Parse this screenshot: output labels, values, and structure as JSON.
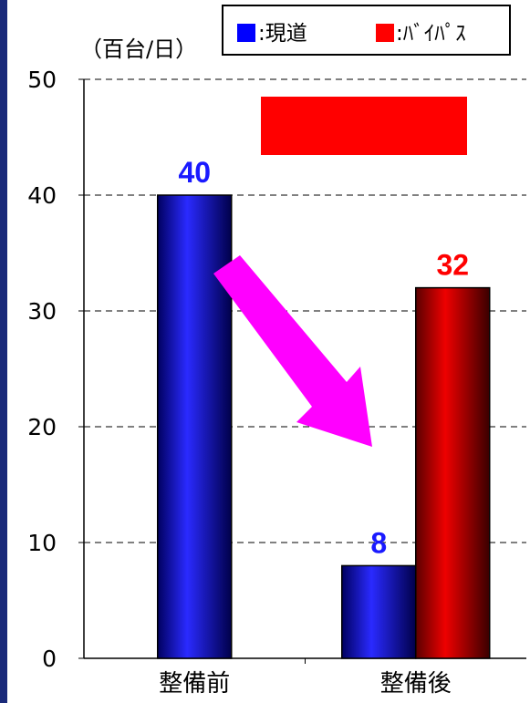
{
  "chart_data": {
    "type": "bar",
    "unit_label": "（百台/日）",
    "categories": [
      "整備前",
      "整備後"
    ],
    "series": [
      {
        "name": "現道",
        "values": [
          40,
          8
        ],
        "color": "#0000cc",
        "label_color": "#1a1aff"
      },
      {
        "name": "バイパス",
        "values": [
          null,
          32
        ],
        "color": "#cc0000",
        "label_color": "#ff0000"
      }
    ],
    "ylim": [
      0,
      50
    ],
    "yticks": [
      0,
      10,
      20,
      30,
      40,
      50
    ],
    "grid": true,
    "legend": {
      "placement": "top-right",
      "items": [
        {
          "label": ":現道",
          "color": "#0000ff"
        },
        {
          "label": ":ﾊﾞｲﾊﾟｽ",
          "color": "#ff0000"
        }
      ]
    },
    "annotations": {
      "callout_box_color": "#ff0000",
      "arrow_color": "#ff00ff"
    }
  }
}
